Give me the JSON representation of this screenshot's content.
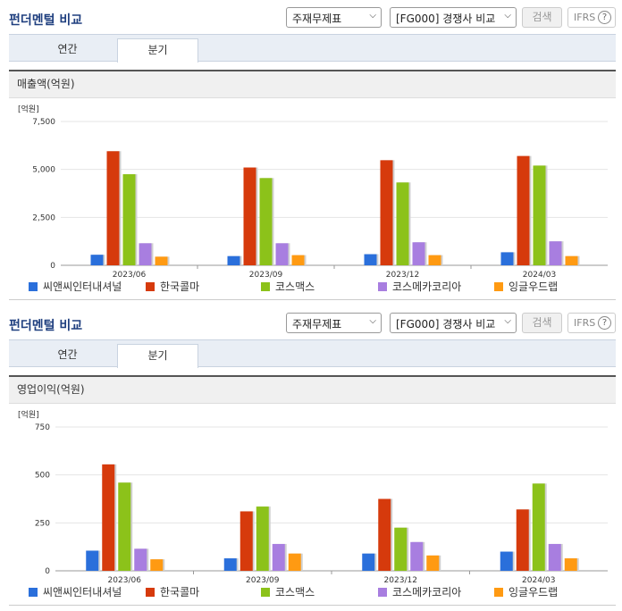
{
  "sections": [
    {
      "title": "펀더멘털 비교",
      "select_statement": "주재무제표",
      "select_compare": "[FG000] 경쟁사 비교",
      "search_label": "검색",
      "ifrs_label": "IFRS",
      "ifrs_help": "?",
      "tabs": [
        "연간",
        "분기"
      ],
      "subheading": "매출액(억원)"
    },
    {
      "title": "펀더멘털 비교",
      "select_statement": "주재무제표",
      "select_compare": "[FG000] 경쟁사 비교",
      "search_label": "검색",
      "ifrs_label": "IFRS",
      "ifrs_help": "?",
      "tabs": [
        "연간",
        "분기"
      ],
      "subheading": "영업이익(억원)"
    }
  ],
  "colors": {
    "씨앤씨인터내셔널": "#2a6fdb",
    "한국콜마": "#d63a0c",
    "코스맥스": "#8cc21a",
    "코스메카코리아": "#a87ee0",
    "잉글우드랩": "#ff9a12"
  },
  "chart_data": [
    {
      "type": "bar",
      "unit_label": "[억원]",
      "categories": [
        "2023/06",
        "2023/09",
        "2023/12",
        "2024/03"
      ],
      "ylim": [
        0,
        7500
      ],
      "yticks": [
        "0",
        "2,500",
        "5,000",
        "7,500"
      ],
      "ytick_values": [
        0,
        2500,
        5000,
        7500
      ],
      "series": [
        {
          "name": "씨앤씨인터내셔널",
          "values": [
            550,
            480,
            580,
            680
          ]
        },
        {
          "name": "한국콜마",
          "values": [
            5950,
            5100,
            5480,
            5700
          ]
        },
        {
          "name": "코스맥스",
          "values": [
            4750,
            4550,
            4320,
            5200
          ]
        },
        {
          "name": "코스메카코리아",
          "values": [
            1150,
            1150,
            1200,
            1250
          ]
        },
        {
          "name": "잉글우드랩",
          "values": [
            450,
            530,
            530,
            480
          ]
        }
      ]
    },
    {
      "type": "bar",
      "unit_label": "[억원]",
      "categories": [
        "2023/06",
        "2023/09",
        "2023/12",
        "2024/03"
      ],
      "ylim": [
        0,
        750
      ],
      "yticks": [
        "0",
        "250",
        "500",
        "750"
      ],
      "ytick_values": [
        0,
        250,
        500,
        750
      ],
      "series": [
        {
          "name": "씨앤씨인터내셔널",
          "values": [
            105,
            65,
            90,
            100
          ]
        },
        {
          "name": "한국콜마",
          "values": [
            555,
            310,
            375,
            320
          ]
        },
        {
          "name": "코스맥스",
          "values": [
            460,
            335,
            225,
            455
          ]
        },
        {
          "name": "코스메카코리아",
          "values": [
            115,
            140,
            150,
            140
          ]
        },
        {
          "name": "잉글우드랩",
          "values": [
            60,
            90,
            80,
            65
          ]
        }
      ]
    }
  ]
}
